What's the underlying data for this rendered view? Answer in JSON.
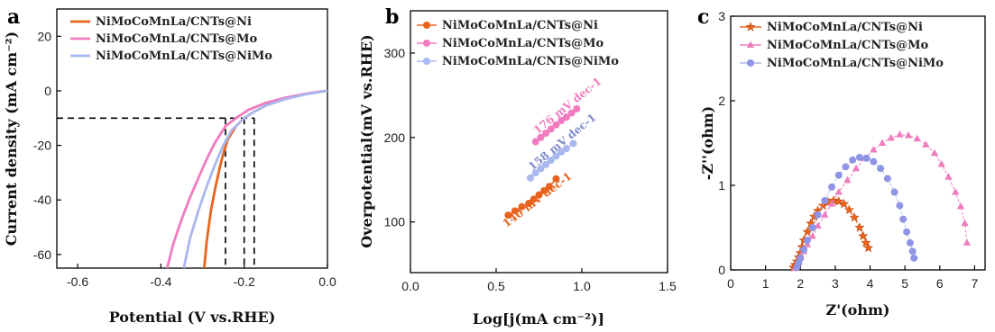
{
  "colors": {
    "ni": "#e8641e",
    "mo": "#f07cbf",
    "nimo": "#a9b8ee",
    "nimo_marker": "#8f95e6",
    "axis": "#000000"
  },
  "chart_data": [
    {
      "panel": "a",
      "type": "line",
      "xlabel": "Potential (V vs.RHE)",
      "ylabel": "Current density (mA cm⁻²)",
      "xlim": [
        -0.65,
        0.0
      ],
      "ylim": [
        -65,
        30
      ],
      "xticks": [
        -0.6,
        -0.4,
        -0.2,
        0.0
      ],
      "xtick_labels": [
        "-0.6",
        "-0.4",
        "-0.2",
        "0.0"
      ],
      "yticks": [
        -60,
        -40,
        -20,
        0,
        20
      ],
      "ytick_labels": [
        "-60",
        "-40",
        "-20",
        "0",
        "20"
      ],
      "legend_position": "top-left",
      "reference_lines": {
        "y": -10,
        "x": [
          -0.245,
          -0.2,
          -0.176
        ]
      },
      "series": [
        {
          "name": "NiMoCoMnLa/CNTs@Ni",
          "color_key": "ni",
          "x": [
            -0.296,
            -0.29,
            -0.28,
            -0.27,
            -0.26,
            -0.25,
            -0.24,
            -0.22,
            -0.2,
            -0.18,
            -0.15,
            -0.12,
            -0.1,
            -0.085
          ],
          "y": [
            -65,
            -55,
            -44,
            -36,
            -29,
            -23,
            -18,
            -13,
            -10,
            -8,
            -5.5,
            -3.8,
            -2.8,
            -2
          ]
        },
        {
          "name": "NiMoCoMnLa/CNTs@Mo",
          "color_key": "mo",
          "x": [
            -0.385,
            -0.37,
            -0.35,
            -0.33,
            -0.31,
            -0.29,
            -0.27,
            -0.245,
            -0.22,
            -0.19,
            -0.15,
            -0.1,
            -0.05,
            -0.02,
            0.0
          ],
          "y": [
            -65,
            -56,
            -47,
            -39,
            -32,
            -25,
            -19,
            -13,
            -10,
            -7,
            -4.5,
            -2.5,
            -1,
            -0.3,
            0
          ]
        },
        {
          "name": "NiMoCoMnLa/CNTs@NiMo",
          "color_key": "nimo",
          "x": [
            -0.345,
            -0.33,
            -0.31,
            -0.29,
            -0.27,
            -0.25,
            -0.23,
            -0.2,
            -0.18,
            -0.15,
            -0.1,
            -0.05,
            0.0
          ],
          "y": [
            -65,
            -54,
            -44,
            -35,
            -27,
            -20,
            -14.5,
            -10,
            -8,
            -5.5,
            -3,
            -1.2,
            0
          ]
        }
      ]
    },
    {
      "panel": "b",
      "type": "scatter",
      "xlabel": "Log[j(mA cm⁻²)]",
      "ylabel": "Overpotential(mV vs.RHE)",
      "xlim": [
        0.0,
        1.5
      ],
      "ylim": [
        40,
        350
      ],
      "xticks": [
        0.0,
        0.5,
        1.0,
        1.5
      ],
      "xtick_labels": [
        "0.0",
        "0.5",
        "1.0",
        "1.5"
      ],
      "yticks": [
        100,
        200,
        300
      ],
      "ytick_labels": [
        "100",
        "200",
        "300"
      ],
      "legend_position": "top-left",
      "series": [
        {
          "name": "NiMoCoMnLa/CNTs@Ni",
          "color_key": "ni",
          "slope_label": "140 mV dec-1",
          "x": [
            0.57,
            0.61,
            0.65,
            0.69,
            0.72,
            0.75,
            0.78,
            0.81,
            0.85
          ],
          "y": [
            108,
            113,
            118,
            122,
            127,
            132,
            137,
            142,
            151
          ]
        },
        {
          "name": "NiMoCoMnLa/CNTs@Mo",
          "color_key": "mo",
          "slope_label": "176 mV dec-1",
          "x": [
            0.73,
            0.76,
            0.79,
            0.82,
            0.85,
            0.88,
            0.91,
            0.94,
            0.97
          ],
          "y": [
            195,
            200,
            205,
            210,
            215,
            220,
            224,
            229,
            234
          ]
        },
        {
          "name": "NiMoCoMnLa/CNTs@NiMo",
          "color_key": "nimo",
          "slope_label": "158 mV dec-1",
          "x": [
            0.7,
            0.73,
            0.76,
            0.79,
            0.82,
            0.85,
            0.88,
            0.91,
            0.95
          ],
          "y": [
            152,
            158,
            163,
            168,
            173,
            178,
            183,
            187,
            193
          ]
        }
      ]
    },
    {
      "panel": "c",
      "type": "scatter",
      "xlabel": "Z'(ohm)",
      "ylabel": "-Z''(ohm)",
      "xlim": [
        0,
        7.3
      ],
      "ylim": [
        0,
        3
      ],
      "xticks": [
        0,
        1,
        2,
        3,
        4,
        5,
        6,
        7
      ],
      "xtick_labels": [
        "0",
        "1",
        "2",
        "3",
        "4",
        "5",
        "6",
        "7"
      ],
      "yticks": [
        0,
        1,
        2,
        3
      ],
      "ytick_labels": [
        "0",
        "1",
        "2",
        "3"
      ],
      "legend_position": "top-left",
      "series": [
        {
          "name": "NiMoCoMnLa/CNTs@Ni",
          "color_key": "ni",
          "marker": "star",
          "x": [
            1.8,
            1.85,
            1.9,
            1.95,
            2.0,
            2.05,
            2.1,
            2.2,
            2.3,
            2.4,
            2.5,
            2.65,
            2.8,
            2.95,
            3.1,
            3.25,
            3.4,
            3.55,
            3.7,
            3.8,
            3.88,
            3.95
          ],
          "y": [
            0.03,
            0.06,
            0.1,
            0.15,
            0.2,
            0.27,
            0.35,
            0.45,
            0.55,
            0.63,
            0.7,
            0.76,
            0.8,
            0.82,
            0.81,
            0.78,
            0.71,
            0.62,
            0.5,
            0.4,
            0.32,
            0.26
          ]
        },
        {
          "name": "NiMoCoMnLa/CNTs@Mo",
          "color_key": "mo",
          "marker": "triangle",
          "x": [
            1.85,
            1.9,
            1.95,
            2.0,
            2.1,
            2.2,
            2.35,
            2.5,
            2.7,
            2.9,
            3.1,
            3.35,
            3.6,
            3.85,
            4.1,
            4.35,
            4.6,
            4.85,
            5.1,
            5.35,
            5.6,
            5.85,
            6.05,
            6.25,
            6.45,
            6.6,
            6.72,
            6.78
          ],
          "y": [
            0.02,
            0.05,
            0.09,
            0.14,
            0.22,
            0.3,
            0.4,
            0.52,
            0.65,
            0.78,
            0.92,
            1.06,
            1.2,
            1.32,
            1.42,
            1.5,
            1.56,
            1.6,
            1.59,
            1.55,
            1.48,
            1.38,
            1.25,
            1.1,
            0.92,
            0.75,
            0.55,
            0.32
          ]
        },
        {
          "name": "NiMoCoMnLa/CNTs@NiMo",
          "color_key": "nimo",
          "marker": "circle",
          "x": [
            1.9,
            1.95,
            2.0,
            2.1,
            2.2,
            2.35,
            2.5,
            2.7,
            2.9,
            3.1,
            3.3,
            3.5,
            3.7,
            3.9,
            4.1,
            4.3,
            4.5,
            4.7,
            4.85,
            4.95,
            5.05,
            5.15,
            5.22,
            5.26
          ],
          "y": [
            0.03,
            0.08,
            0.14,
            0.24,
            0.35,
            0.5,
            0.65,
            0.82,
            0.98,
            1.12,
            1.22,
            1.3,
            1.33,
            1.32,
            1.28,
            1.2,
            1.08,
            0.92,
            0.76,
            0.6,
            0.45,
            0.32,
            0.22,
            0.14
          ]
        }
      ]
    }
  ]
}
